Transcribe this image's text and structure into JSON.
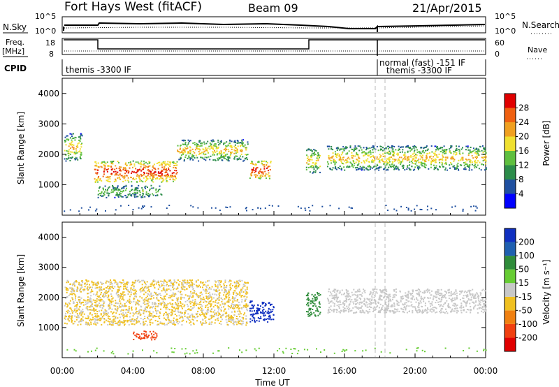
{
  "header": {
    "station": "Fort Hays West (fitACF)",
    "beam": "Beam 09",
    "date": "21/Apr/2015"
  },
  "noise_panel": {
    "left_label": "N.Sky",
    "left_ticks": [
      "10^5",
      "10^0"
    ],
    "right_ticks": [
      "10^5",
      "10^0"
    ],
    "right_label": "N.Search"
  },
  "freq_panel": {
    "left_label": "Freq.",
    "left_unit": "[MHz]",
    "left_ticks": [
      "18",
      "8"
    ],
    "right_ticks": [
      "60",
      "0"
    ],
    "right_label": "Nave"
  },
  "cpid_panel": {
    "label": "CPID",
    "modes": [
      "themis -3300 IF",
      "normal (fast) -151 IF",
      "themis -3300 IF"
    ]
  },
  "axes": {
    "ylabel": "Slant Range [km]",
    "yticks": [
      "4000",
      "3000",
      "2000",
      "1000"
    ],
    "xticks": [
      "00:00",
      "04:00",
      "08:00",
      "12:00",
      "16:00",
      "20:00",
      "00:00"
    ],
    "xlabel": "Time UT"
  },
  "power_scale": {
    "label": "Power [dB]",
    "ticks": [
      "28",
      "24",
      "20",
      "16",
      "12",
      "8",
      "4"
    ],
    "colors": [
      "#0000ff",
      "#1f50a0",
      "#2c8c4a",
      "#5fbf3f",
      "#f0e030",
      "#f0a020",
      "#f06010",
      "#e00000"
    ]
  },
  "velocity_scale": {
    "label": "Velocity [m s⁻¹]",
    "ticks": [
      "200",
      "100",
      "50",
      "15",
      "-15",
      "-50",
      "-100",
      "-200"
    ],
    "colors": [
      "#1030c0",
      "#1f60b0",
      "#2f8c3a",
      "#66cc33",
      "#c8c8c8",
      "#f0c020",
      "#f08010",
      "#f04010",
      "#e00000"
    ]
  },
  "chart_data": {
    "type": "heatmap",
    "x_unit": "hours UT",
    "xlim": [
      0,
      24
    ],
    "ylim": [
      0,
      4500
    ],
    "y_unit": "km",
    "power_regions": [
      {
        "t": [
          0.1,
          1.1
        ],
        "r": [
          1800,
          2700
        ],
        "level": "mid"
      },
      {
        "t": [
          1.8,
          6.5
        ],
        "r": [
          1100,
          1800
        ],
        "level": "high"
      },
      {
        "t": [
          6.5,
          10.5
        ],
        "r": [
          1800,
          2500
        ],
        "level": "mid"
      },
      {
        "t": [
          10.6,
          11.8
        ],
        "r": [
          1200,
          1800
        ],
        "level": "high"
      },
      {
        "t": [
          13.8,
          14.6
        ],
        "r": [
          1400,
          2200
        ],
        "level": "mid"
      },
      {
        "t": [
          15.0,
          24.0
        ],
        "r": [
          1500,
          2300
        ],
        "level": "mid"
      },
      {
        "t": [
          2.0,
          5.6
        ],
        "r": [
          600,
          1000
        ],
        "level": "low"
      }
    ],
    "velocity_regions": [
      {
        "t": [
          10.6,
          12.0
        ],
        "r": [
          1200,
          1900
        ],
        "v": 200
      },
      {
        "t": [
          4.0,
          5.4
        ],
        "r": [
          600,
          900
        ],
        "v": -150
      },
      {
        "t": [
          13.8,
          14.6
        ],
        "r": [
          1400,
          2200
        ],
        "v": 50
      },
      {
        "t": [
          0.1,
          10.5
        ],
        "r": [
          1100,
          2600
        ],
        "v": -30
      },
      {
        "t": [
          15.0,
          24.0
        ],
        "r": [
          1500,
          2300
        ],
        "v": 0
      }
    ]
  }
}
